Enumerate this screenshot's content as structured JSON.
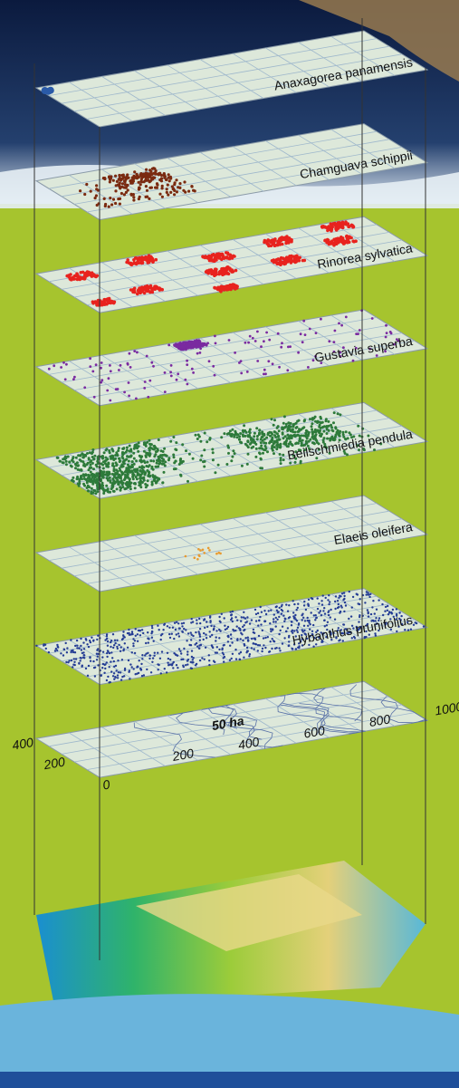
{
  "layers": [
    {
      "label": "Anaxagorea panamensis"
    },
    {
      "label": "Chamguava schippii"
    },
    {
      "label": "Rinorea sylvatica"
    },
    {
      "label": "Gustavia superba"
    },
    {
      "label": "Beilschmiedia pendula"
    },
    {
      "label": "Elaeis oleifera"
    },
    {
      "label": "Hybanthus prunifolius"
    }
  ],
  "plot": {
    "label": "50 ha",
    "x_axis": [
      "0",
      "200",
      "400",
      "600",
      "800",
      "1000"
    ],
    "y_axis": [
      "200",
      "400"
    ]
  }
}
